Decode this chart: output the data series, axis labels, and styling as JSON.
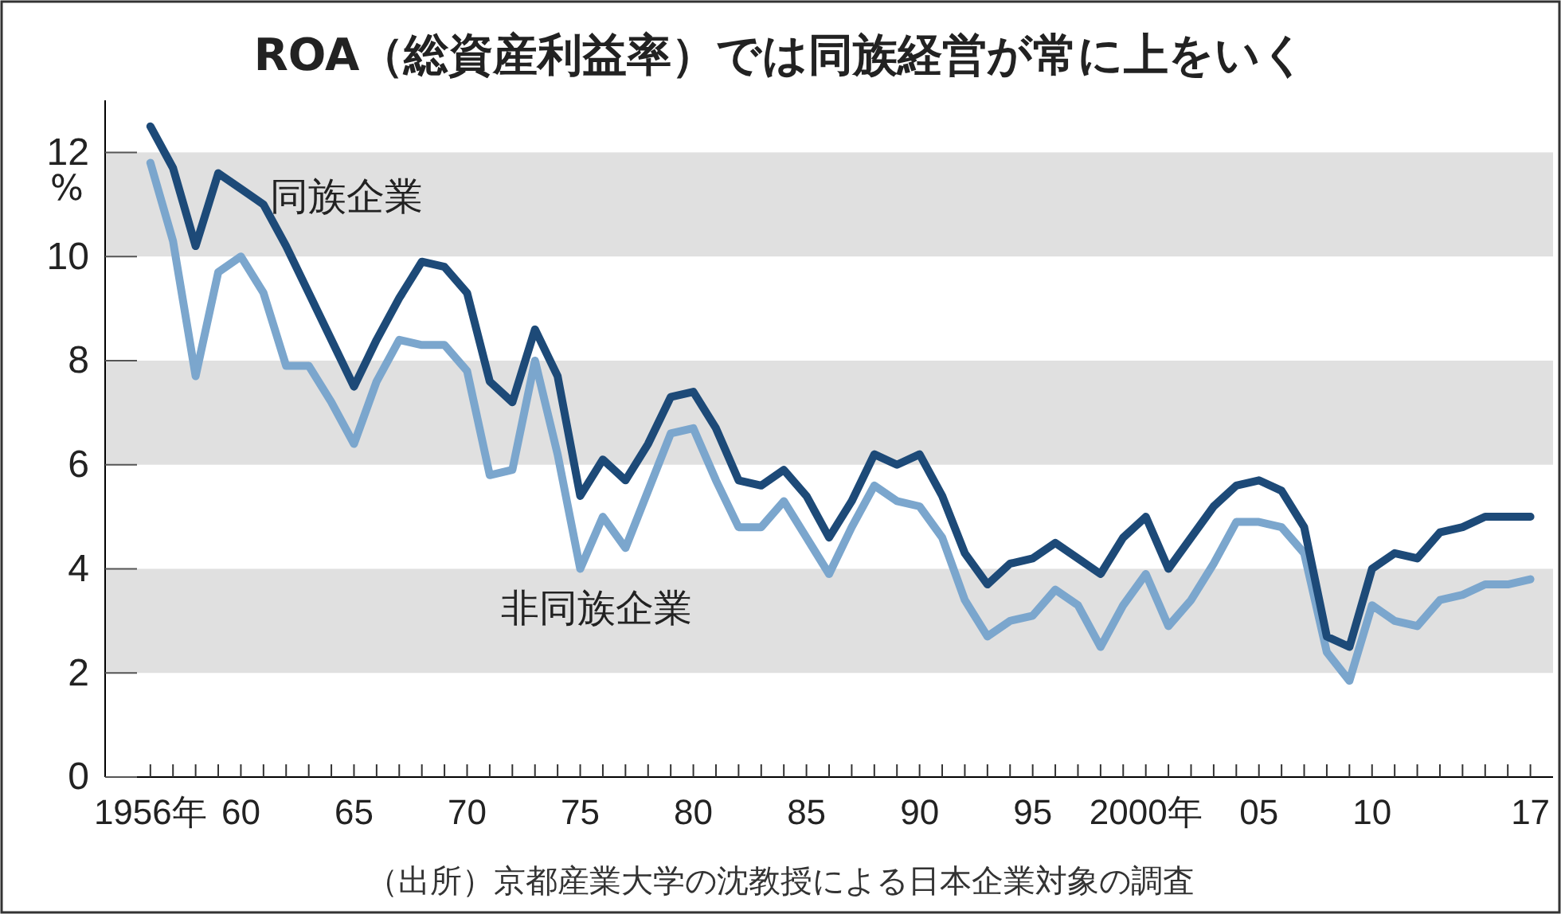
{
  "chart_data": {
    "type": "line",
    "title": "ROA（総資産利益率）では同族経営が常に上をいく",
    "ylabel": "%",
    "x": [
      1956,
      1957,
      1958,
      1959,
      1960,
      1961,
      1962,
      1963,
      1964,
      1965,
      1966,
      1967,
      1968,
      1969,
      1970,
      1971,
      1972,
      1973,
      1974,
      1975,
      1976,
      1977,
      1978,
      1979,
      1980,
      1981,
      1982,
      1983,
      1984,
      1985,
      1986,
      1987,
      1988,
      1989,
      1990,
      1991,
      1992,
      1993,
      1994,
      1995,
      1996,
      1997,
      1998,
      1999,
      2000,
      2001,
      2002,
      2003,
      2004,
      2005,
      2006,
      2007,
      2008,
      2009,
      2010,
      2011,
      2012,
      2013,
      2014,
      2015,
      2016,
      2017
    ],
    "series": [
      {
        "name": "同族企業",
        "color": "#1d4a78",
        "values": [
          12.5,
          11.7,
          10.2,
          11.6,
          11.3,
          11.0,
          10.2,
          9.3,
          8.4,
          7.5,
          8.4,
          9.2,
          9.9,
          9.8,
          9.3,
          7.6,
          7.2,
          8.6,
          7.7,
          5.4,
          6.1,
          5.7,
          6.4,
          7.3,
          7.4,
          6.7,
          5.7,
          5.6,
          5.9,
          5.4,
          4.6,
          5.3,
          6.2,
          6.0,
          6.2,
          5.4,
          4.3,
          3.7,
          4.1,
          4.2,
          4.5,
          4.2,
          3.9,
          4.6,
          5.0,
          4.0,
          4.6,
          5.2,
          5.6,
          5.7,
          5.5,
          4.8,
          2.7,
          2.5,
          4.0,
          4.3,
          4.2,
          4.7,
          4.8,
          5.0,
          5.0,
          5.0
        ]
      },
      {
        "name": "非同族企業",
        "color": "#7ba6cd",
        "values": [
          11.8,
          10.3,
          7.7,
          9.7,
          10.0,
          9.3,
          7.9,
          7.9,
          7.2,
          6.4,
          7.6,
          8.4,
          8.3,
          8.3,
          7.8,
          5.8,
          5.9,
          8.0,
          6.2,
          4.0,
          5.0,
          4.4,
          5.5,
          6.6,
          6.7,
          5.7,
          4.8,
          4.8,
          5.3,
          4.6,
          3.9,
          4.8,
          5.6,
          5.3,
          5.2,
          4.6,
          3.4,
          2.7,
          3.0,
          3.1,
          3.6,
          3.3,
          2.5,
          3.3,
          3.9,
          2.9,
          3.4,
          4.1,
          4.9,
          4.9,
          4.8,
          4.3,
          2.4,
          1.85,
          3.3,
          3.0,
          2.9,
          3.4,
          3.5,
          3.7,
          3.7,
          3.8
        ]
      }
    ],
    "xlim": [
      1954,
      2018
    ],
    "xticks": [
      {
        "value": 1956,
        "label": "1956年"
      },
      {
        "value": 1957,
        "label": null
      },
      {
        "value": 1958,
        "label": null
      },
      {
        "value": 1959,
        "label": null
      },
      {
        "value": 1960,
        "label": "60"
      },
      {
        "value": 1961,
        "label": null
      },
      {
        "value": 1962,
        "label": null
      },
      {
        "value": 1963,
        "label": null
      },
      {
        "value": 1964,
        "label": null
      },
      {
        "value": 1965,
        "label": "65"
      },
      {
        "value": 1966,
        "label": null
      },
      {
        "value": 1967,
        "label": null
      },
      {
        "value": 1968,
        "label": null
      },
      {
        "value": 1969,
        "label": null
      },
      {
        "value": 1970,
        "label": "70"
      },
      {
        "value": 1971,
        "label": null
      },
      {
        "value": 1972,
        "label": null
      },
      {
        "value": 1973,
        "label": null
      },
      {
        "value": 1974,
        "label": null
      },
      {
        "value": 1975,
        "label": "75"
      },
      {
        "value": 1976,
        "label": null
      },
      {
        "value": 1977,
        "label": null
      },
      {
        "value": 1978,
        "label": null
      },
      {
        "value": 1979,
        "label": null
      },
      {
        "value": 1980,
        "label": "80"
      },
      {
        "value": 1981,
        "label": null
      },
      {
        "value": 1982,
        "label": null
      },
      {
        "value": 1983,
        "label": null
      },
      {
        "value": 1984,
        "label": null
      },
      {
        "value": 1985,
        "label": "85"
      },
      {
        "value": 1986,
        "label": null
      },
      {
        "value": 1987,
        "label": null
      },
      {
        "value": 1988,
        "label": null
      },
      {
        "value": 1989,
        "label": null
      },
      {
        "value": 1990,
        "label": "90"
      },
      {
        "value": 1991,
        "label": null
      },
      {
        "value": 1992,
        "label": null
      },
      {
        "value": 1993,
        "label": null
      },
      {
        "value": 1994,
        "label": null
      },
      {
        "value": 1995,
        "label": "95"
      },
      {
        "value": 1996,
        "label": null
      },
      {
        "value": 1997,
        "label": null
      },
      {
        "value": 1998,
        "label": null
      },
      {
        "value": 1999,
        "label": null
      },
      {
        "value": 2000,
        "label": "2000年"
      },
      {
        "value": 2001,
        "label": null
      },
      {
        "value": 2002,
        "label": null
      },
      {
        "value": 2003,
        "label": null
      },
      {
        "value": 2004,
        "label": null
      },
      {
        "value": 2005,
        "label": "05"
      },
      {
        "value": 2006,
        "label": null
      },
      {
        "value": 2007,
        "label": null
      },
      {
        "value": 2008,
        "label": null
      },
      {
        "value": 2009,
        "label": null
      },
      {
        "value": 2010,
        "label": "10"
      },
      {
        "value": 2011,
        "label": null
      },
      {
        "value": 2012,
        "label": null
      },
      {
        "value": 2013,
        "label": null
      },
      {
        "value": 2014,
        "label": null
      },
      {
        "value": 2015,
        "label": null
      },
      {
        "value": 2016,
        "label": null
      },
      {
        "value": 2017,
        "label": "17"
      }
    ],
    "ylim": [
      0,
      13
    ],
    "yticks": [
      0,
      2,
      4,
      6,
      8,
      10,
      12
    ],
    "bands": [
      {
        "axis": "y",
        "from": 2,
        "to": 4,
        "color": "#e0e0e0"
      },
      {
        "axis": "y",
        "from": 6,
        "to": 8,
        "color": "#e0e0e0"
      },
      {
        "axis": "y",
        "from": 10,
        "to": 12,
        "color": "#e0e0e0"
      }
    ],
    "annotations": [
      "（出所）京都産業大学の沈教授による日本企業対象の調査"
    ],
    "grid": false,
    "legend": false,
    "marker": "none",
    "line_style": "solid"
  }
}
